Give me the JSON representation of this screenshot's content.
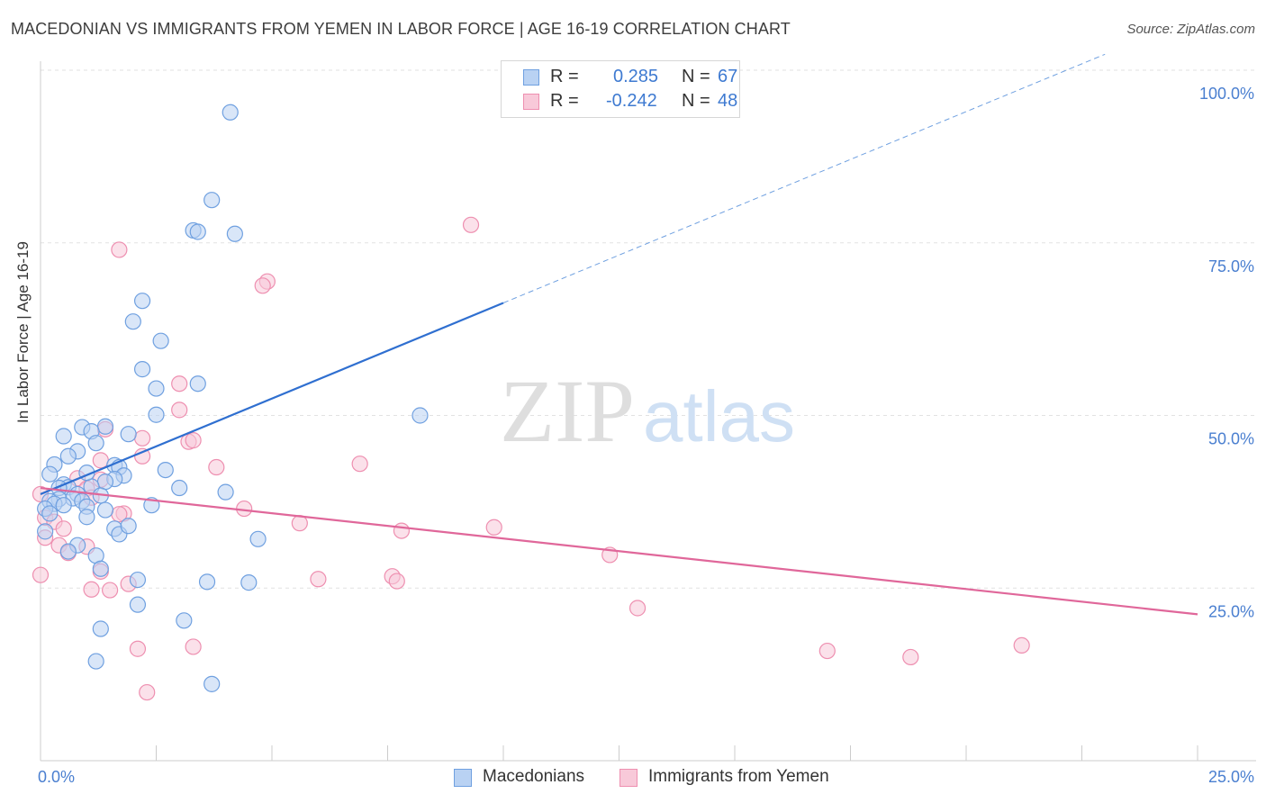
{
  "title": "MACEDONIAN VS IMMIGRANTS FROM YEMEN IN LABOR FORCE | AGE 16-19 CORRELATION CHART",
  "source": "Source: ZipAtlas.com",
  "watermark": {
    "zip": "ZIP",
    "atlas": "atlas"
  },
  "colors": {
    "blue": "#6fa0e0",
    "blue_fill": "#b9d2f3",
    "blue_line": "#2f6fd0",
    "pink": "#ee8fb0",
    "pink_fill": "#f8c9d9",
    "pink_line": "#e0679a",
    "tick": "#4a7fd0",
    "grid": "#e2e2e2"
  },
  "legend": {
    "rows": [
      {
        "r_label": "R =",
        "r_value": "0.285",
        "n_label": "N =",
        "n_value": "67"
      },
      {
        "r_label": "R =",
        "r_value": "-0.242",
        "n_label": "N =",
        "n_value": "48"
      }
    ]
  },
  "bottom_legend": [
    "Macedonians",
    "Immigrants from Yemen"
  ],
  "chart_data": {
    "type": "scatter",
    "ylabel": "In Labor Force | Age 16-19",
    "xlim": [
      0,
      25
    ],
    "ylim": [
      0,
      100
    ],
    "x_ticks": [
      {
        "value": 0,
        "label": "0.0%"
      },
      {
        "value": 25,
        "label": "25.0%"
      }
    ],
    "y_ticks": [
      {
        "value": 25,
        "label": "25.0%"
      },
      {
        "value": 50,
        "label": "50.0%"
      },
      {
        "value": 75,
        "label": "75.0%"
      },
      {
        "value": 100,
        "label": "100.0%"
      }
    ],
    "grid": true,
    "series": [
      {
        "name": "Macedonians",
        "trend": {
          "x0": 0,
          "y0": 38.6,
          "x1": 10,
          "y1": 66.3,
          "dashed_to_x": 23
        },
        "points": [
          [
            4.1,
            93.9
          ],
          [
            3.7,
            81.2
          ],
          [
            3.3,
            76.8
          ],
          [
            3.4,
            76.6
          ],
          [
            4.2,
            76.3
          ],
          [
            2.2,
            66.6
          ],
          [
            2.0,
            63.6
          ],
          [
            2.6,
            60.8
          ],
          [
            2.2,
            56.7
          ],
          [
            3.4,
            54.6
          ],
          [
            2.5,
            53.9
          ],
          [
            2.5,
            50.1
          ],
          [
            8.2,
            50.0
          ],
          [
            1.4,
            48.4
          ],
          [
            0.9,
            48.3
          ],
          [
            1.1,
            47.7
          ],
          [
            0.5,
            47.0
          ],
          [
            1.9,
            47.3
          ],
          [
            1.2,
            46.0
          ],
          [
            0.8,
            44.8
          ],
          [
            0.6,
            44.1
          ],
          [
            0.3,
            42.9
          ],
          [
            1.6,
            42.8
          ],
          [
            1.7,
            42.5
          ],
          [
            2.7,
            42.1
          ],
          [
            1.8,
            41.3
          ],
          [
            0.2,
            41.5
          ],
          [
            1.6,
            40.8
          ],
          [
            1.4,
            40.4
          ],
          [
            0.5,
            40.0
          ],
          [
            0.6,
            39.6
          ],
          [
            1.1,
            39.7
          ],
          [
            0.4,
            39.5
          ],
          [
            3.0,
            39.5
          ],
          [
            4.0,
            38.9
          ],
          [
            0.8,
            38.6
          ],
          [
            1.3,
            38.4
          ],
          [
            0.7,
            38.0
          ],
          [
            0.4,
            37.9
          ],
          [
            0.2,
            37.6
          ],
          [
            0.9,
            37.6
          ],
          [
            0.3,
            37.2
          ],
          [
            0.5,
            37.0
          ],
          [
            1.0,
            36.8
          ],
          [
            0.1,
            36.5
          ],
          [
            1.4,
            36.3
          ],
          [
            0.2,
            35.8
          ],
          [
            1.0,
            35.3
          ],
          [
            1.6,
            33.6
          ],
          [
            1.7,
            32.8
          ],
          [
            4.7,
            32.1
          ],
          [
            0.1,
            33.2
          ],
          [
            0.8,
            31.2
          ],
          [
            1.2,
            29.7
          ],
          [
            1.3,
            27.8
          ],
          [
            2.1,
            26.2
          ],
          [
            3.6,
            25.9
          ],
          [
            4.5,
            25.8
          ],
          [
            2.1,
            22.6
          ],
          [
            3.1,
            20.3
          ],
          [
            1.3,
            19.1
          ],
          [
            1.2,
            14.4
          ],
          [
            3.7,
            11.1
          ],
          [
            0.6,
            30.3
          ],
          [
            1.9,
            34.0
          ],
          [
            2.4,
            37.0
          ],
          [
            1.0,
            41.7
          ]
        ]
      },
      {
        "name": "Immigrants from Yemen",
        "trend": {
          "x0": 0,
          "y0": 39.5,
          "x1": 25,
          "y1": 21.2
        },
        "points": [
          [
            9.3,
            77.6
          ],
          [
            1.7,
            74.0
          ],
          [
            4.9,
            69.4
          ],
          [
            4.8,
            68.8
          ],
          [
            3.0,
            54.6
          ],
          [
            3.0,
            50.8
          ],
          [
            1.4,
            48.0
          ],
          [
            2.2,
            46.7
          ],
          [
            3.2,
            46.2
          ],
          [
            3.3,
            46.4
          ],
          [
            2.2,
            44.1
          ],
          [
            1.3,
            43.5
          ],
          [
            6.9,
            43.0
          ],
          [
            3.8,
            42.5
          ],
          [
            0.8,
            40.9
          ],
          [
            1.3,
            40.7
          ],
          [
            1.0,
            39.4
          ],
          [
            1.1,
            38.1
          ],
          [
            0.0,
            38.6
          ],
          [
            4.4,
            36.5
          ],
          [
            1.8,
            35.8
          ],
          [
            1.7,
            35.7
          ],
          [
            0.1,
            35.2
          ],
          [
            0.3,
            34.6
          ],
          [
            5.6,
            34.4
          ],
          [
            0.5,
            33.6
          ],
          [
            9.8,
            33.8
          ],
          [
            7.8,
            33.3
          ],
          [
            0.1,
            32.3
          ],
          [
            1.0,
            31.0
          ],
          [
            0.4,
            31.2
          ],
          [
            0.6,
            30.1
          ],
          [
            12.3,
            29.8
          ],
          [
            1.3,
            27.4
          ],
          [
            0.0,
            26.9
          ],
          [
            6.0,
            26.3
          ],
          [
            7.6,
            26.7
          ],
          [
            7.7,
            26.0
          ],
          [
            1.1,
            24.8
          ],
          [
            1.5,
            24.7
          ],
          [
            1.9,
            25.6
          ],
          [
            12.9,
            22.1
          ],
          [
            2.1,
            16.2
          ],
          [
            3.3,
            16.5
          ],
          [
            17.0,
            15.9
          ],
          [
            18.8,
            15.0
          ],
          [
            21.2,
            16.7
          ],
          [
            2.3,
            9.9
          ]
        ]
      }
    ]
  }
}
